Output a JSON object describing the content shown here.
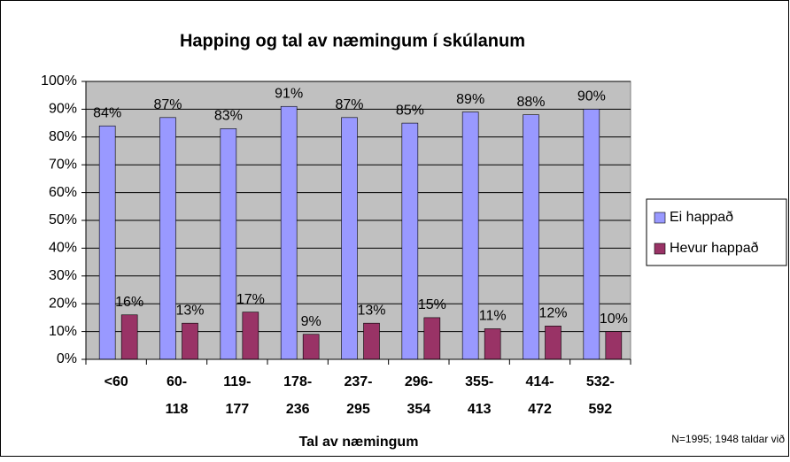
{
  "chart_data": {
    "type": "bar",
    "title": "Happing og tal av næmingum í skúlanum",
    "x_label": "Tal av næmingum",
    "annotation": "N=1995; 1948 taldar við",
    "categories": [
      "<60",
      "60-118",
      "119-177",
      "178-236",
      "237-295",
      "296-354",
      "355-413",
      "414-472",
      "532-592"
    ],
    "series": [
      {
        "name": "Ei happað",
        "color": "#9999ff",
        "values": [
          84,
          87,
          83,
          91,
          87,
          85,
          89,
          88,
          90
        ],
        "value_labels": [
          "84%",
          "87%",
          "83%",
          "91%",
          "87%",
          "85%",
          "89%",
          "88%",
          "90%"
        ]
      },
      {
        "name": "Hevur happað",
        "color": "#993366",
        "values": [
          16,
          13,
          17,
          9,
          13,
          15,
          11,
          12,
          10
        ],
        "value_labels": [
          "16%",
          "13%",
          "17%",
          "9%",
          "13%",
          "15%",
          "11%",
          "12%",
          "10%"
        ]
      }
    ],
    "ylim": [
      0,
      100
    ],
    "yticks": [
      {
        "value": 0,
        "label": "0%"
      },
      {
        "value": 10,
        "label": "10%"
      },
      {
        "value": 20,
        "label": "20%"
      },
      {
        "value": 30,
        "label": "30%"
      },
      {
        "value": 40,
        "label": "40%"
      },
      {
        "value": 50,
        "label": "50%"
      },
      {
        "value": 60,
        "label": "60%"
      },
      {
        "value": 70,
        "label": "70%"
      },
      {
        "value": 80,
        "label": "80%"
      },
      {
        "value": 90,
        "label": "90%"
      },
      {
        "value": 100,
        "label": "100%"
      }
    ],
    "grid": true,
    "legend": "right",
    "plot_background": "#c0c0c0"
  }
}
